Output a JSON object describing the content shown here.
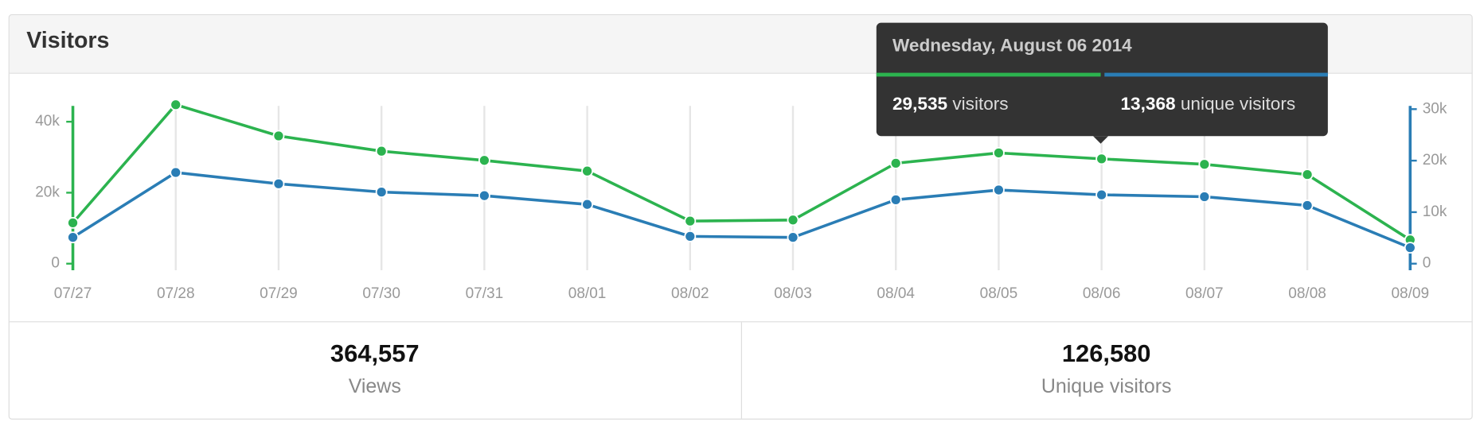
{
  "header": {
    "title": "Visitors"
  },
  "chart_data": {
    "type": "line",
    "categories": [
      "07/27",
      "07/28",
      "07/29",
      "07/30",
      "07/31",
      "08/01",
      "08/02",
      "08/03",
      "08/04",
      "08/05",
      "08/06",
      "08/07",
      "08/08",
      "08/09"
    ],
    "series": [
      {
        "name": "visitors",
        "color": "#2cb34f",
        "values": [
          11500,
          44800,
          36000,
          31700,
          29100,
          26100,
          12000,
          12300,
          28300,
          31200,
          29535,
          28000,
          25100,
          6700
        ]
      },
      {
        "name": "unique visitors",
        "color": "#2a7db5",
        "axis": "y2",
        "values": [
          5100,
          17700,
          15500,
          13900,
          13200,
          11500,
          5300,
          5100,
          12400,
          14300,
          13368,
          13000,
          11300,
          3100
        ]
      }
    ],
    "ylim": [
      0,
      45000
    ],
    "yticks": [
      0,
      {
        "value": 20000,
        "label": "20k"
      },
      {
        "value": 40000,
        "label": "40k"
      }
    ],
    "y2lim": [
      0,
      31000
    ],
    "y2ticks": [
      0,
      {
        "value": 10000,
        "label": "10k"
      },
      {
        "value": 20000,
        "label": "20k"
      },
      {
        "value": 30000,
        "label": "30k"
      }
    ],
    "grid": true
  },
  "tooltip": {
    "title": "Wednesday, August 06 2014",
    "items": [
      {
        "value": "29,535",
        "label": "visitors"
      },
      {
        "value": "13,368",
        "label": "unique visitors"
      }
    ]
  },
  "stats": [
    {
      "value": "364,557",
      "label": "Views"
    },
    {
      "value": "126,580",
      "label": "Unique visitors"
    }
  ]
}
